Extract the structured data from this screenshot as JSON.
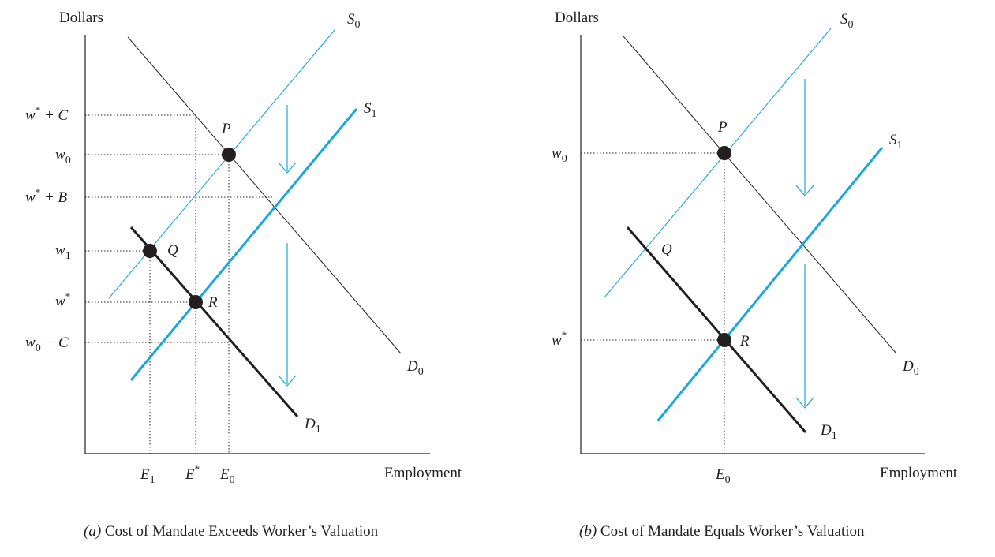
{
  "panel_a": {
    "y_axis_label": "Dollars",
    "x_axis_label": "Employment",
    "caption_letter": "(a)",
    "caption_text": " Cost of Mandate Exceeds Worker’s Valuation",
    "wages": {
      "w_star_plus_C": {
        "w": "w",
        "sup": "*",
        "rest": " + C"
      },
      "w0": {
        "w": "w",
        "sub": "0"
      },
      "w_star_plus_B": {
        "w": "w",
        "sup": "*",
        "rest": " + B"
      },
      "w1": {
        "w": "w",
        "sub": "1"
      },
      "w_star": {
        "w": "w",
        "sup": "*"
      },
      "w0_minus_C": {
        "w": "w",
        "sub": "0",
        "rest": " − C"
      }
    },
    "employment": {
      "E1": {
        "main": "E",
        "sub": "1"
      },
      "E_star": {
        "main": "E",
        "sup": "*"
      },
      "E0": {
        "main": "E",
        "sub": "0"
      }
    },
    "curves": {
      "S0": {
        "main": "S",
        "sub": "0"
      },
      "S1": {
        "main": "S",
        "sub": "1"
      },
      "D0": {
        "main": "D",
        "sub": "0"
      },
      "D1": {
        "main": "D",
        "sub": "1"
      }
    },
    "points": {
      "P": "P",
      "Q": "Q",
      "R": "R"
    }
  },
  "panel_b": {
    "y_axis_label": "Dollars",
    "x_axis_label": "Employment",
    "caption_letter": "(b)",
    "caption_text": " Cost of Mandate Equals Worker’s Valuation",
    "wages": {
      "w0": {
        "w": "w",
        "sub": "0"
      },
      "w_star": {
        "w": "w",
        "sup": "*"
      }
    },
    "employment": {
      "E0": {
        "main": "E",
        "sub": "0"
      }
    },
    "curves": {
      "S0": {
        "main": "S",
        "sub": "0"
      },
      "S1": {
        "main": "S",
        "sub": "1"
      },
      "D0": {
        "main": "D",
        "sub": "0"
      },
      "D1": {
        "main": "D",
        "sub": "1"
      }
    },
    "points": {
      "P": "P",
      "Q": "Q",
      "R": "R"
    }
  },
  "colors": {
    "supply": "#1aa7dc",
    "demand": "#231f20",
    "text": "#231f20"
  }
}
